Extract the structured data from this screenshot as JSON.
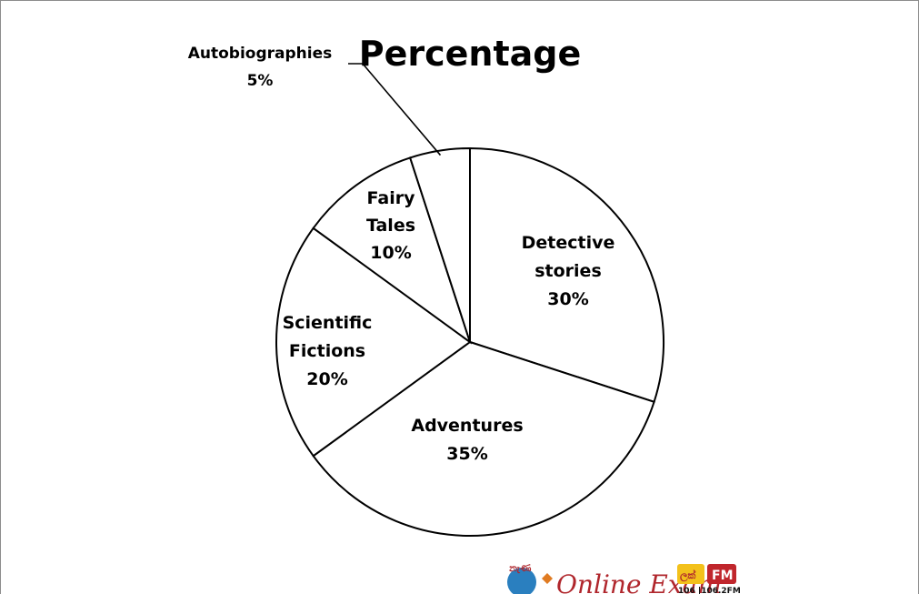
{
  "chart_data": {
    "type": "pie",
    "title": "Percentage",
    "slices": [
      {
        "name": "Detective stories",
        "lines": [
          "Detective",
          "stories"
        ],
        "value": 30,
        "value_label": "30%"
      },
      {
        "name": "Adventures",
        "lines": [
          "Adventures"
        ],
        "value": 35,
        "value_label": "35%"
      },
      {
        "name": "Scientific Fictions",
        "lines": [
          "Scientific",
          "Fictions"
        ],
        "value": 20,
        "value_label": "20%"
      },
      {
        "name": "Fairy Tales",
        "lines": [
          "Fairy",
          "Tales"
        ],
        "value": 10,
        "value_label": "10%"
      },
      {
        "name": "Autobiographies",
        "lines": [
          "Autobiographies"
        ],
        "value": 5,
        "value_label": "5%"
      }
    ],
    "start_angle_deg": 0,
    "direction": "clockwise",
    "fill_color": "#ffffff",
    "stroke_color": "#000000",
    "legend": "none"
  },
  "watermark": {
    "logo_main": "Online Exam",
    "logo_side_upper": "ලක්",
    "logo_side_fm": "FM",
    "logo_side_freq": "106 |106.2FM"
  }
}
